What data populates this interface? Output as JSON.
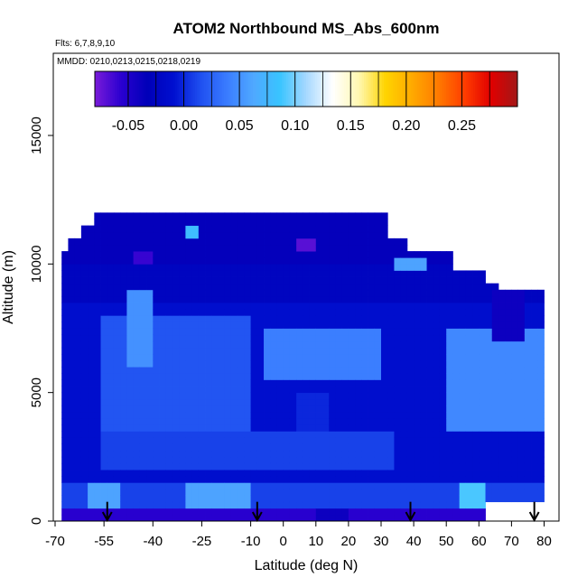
{
  "chart_data": {
    "type": "heatmap",
    "title": "ATOM2 Northbound MS_Abs_600nm",
    "flights_label": "Flts: 6,7,8,9,10",
    "dates_label": "MMDD: 0210,0213,0215,0218,0219",
    "xlabel": "Latitude (deg N)",
    "ylabel": "Altitude (m)",
    "xlim": [
      -70,
      85
    ],
    "ylim": [
      0,
      17500
    ],
    "x_ticks": [
      {
        "value": -70,
        "label": "-70"
      },
      {
        "value": -55,
        "label": "-55"
      },
      {
        "value": -40,
        "label": "-40"
      },
      {
        "value": -25,
        "label": "-25"
      },
      {
        "value": -10,
        "label": "-10"
      },
      {
        "value": 0,
        "label": "0"
      },
      {
        "value": 10,
        "label": "10"
      },
      {
        "value": 20,
        "label": "20"
      },
      {
        "value": 30,
        "label": "30"
      },
      {
        "value": 40,
        "label": "40"
      },
      {
        "value": 50,
        "label": "50"
      },
      {
        "value": 60,
        "label": "60"
      },
      {
        "value": 70,
        "label": "70"
      },
      {
        "value": 80,
        "label": "80"
      }
    ],
    "y_ticks": [
      {
        "value": 0,
        "label": "0"
      },
      {
        "value": 5000,
        "label": "5000"
      },
      {
        "value": 10000,
        "label": "10000"
      },
      {
        "value": 15000,
        "label": "15000"
      }
    ],
    "colorbar": {
      "range": [
        -0.08,
        0.3
      ],
      "colors": [
        "#7a1bd9",
        "#2a00d0",
        "#0000b8",
        "#0010d0",
        "#1f4ff0",
        "#3a7cff",
        "#4fa8ff",
        "#39c4ff",
        "#a6d8ff",
        "#ffffff",
        "#fff7b0",
        "#ffd400",
        "#ffaa00",
        "#ff7a00",
        "#ff3c00",
        "#e00000",
        "#a21818"
      ],
      "ticks": [
        {
          "value": -0.05,
          "label": "-0.05"
        },
        {
          "value": 0.0,
          "label": "0.00"
        },
        {
          "value": 0.05,
          "label": "0.05"
        },
        {
          "value": 0.1,
          "label": "0.10"
        },
        {
          "value": 0.15,
          "label": "0.15"
        },
        {
          "value": 0.2,
          "label": "0.20"
        },
        {
          "value": 0.25,
          "label": "0.25"
        }
      ]
    },
    "coverage": [
      {
        "lat_range": [
          -67,
          -65
        ],
        "alt_range": [
          0,
          10500
        ]
      },
      {
        "lat_range": [
          -65,
          -62
        ],
        "alt_range": [
          0,
          11000
        ]
      },
      {
        "lat_range": [
          -62,
          -58
        ],
        "alt_range": [
          0,
          11500
        ]
      },
      {
        "lat_range": [
          -58,
          33
        ],
        "alt_range": [
          0,
          12000
        ]
      },
      {
        "lat_range": [
          33,
          39
        ],
        "alt_range": [
          0,
          11000
        ]
      },
      {
        "lat_range": [
          39,
          53
        ],
        "alt_range": [
          0,
          10500
        ]
      },
      {
        "lat_range": [
          53,
          62
        ],
        "alt_range": [
          0,
          9800
        ]
      },
      {
        "lat_range": [
          62,
          67
        ],
        "alt_range": [
          800,
          9300
        ]
      },
      {
        "lat_range": [
          67,
          80
        ],
        "alt_range": [
          800,
          8900
        ]
      },
      {
        "lat_range": [
          80,
          81
        ],
        "alt_range": [
          800,
          7000
        ]
      }
    ],
    "patches": [
      {
        "lat": [
          -67,
          82
        ],
        "alt": [
          0,
          12500
        ],
        "value": -0.012
      },
      {
        "lat": [
          -67,
          82
        ],
        "alt": [
          10000,
          12500
        ],
        "value": -0.035
      },
      {
        "lat": [
          -67,
          82
        ],
        "alt": [
          8500,
          10000
        ],
        "value": -0.025
      },
      {
        "lat": [
          -55,
          -10
        ],
        "alt": [
          3500,
          8000
        ],
        "value": 0.018
      },
      {
        "lat": [
          -5,
          30
        ],
        "alt": [
          5500,
          7500
        ],
        "value": 0.04
      },
      {
        "lat": [
          -55,
          35
        ],
        "alt": [
          2000,
          3500
        ],
        "value": 0.01
      },
      {
        "lat": [
          50,
          81
        ],
        "alt": [
          3500,
          7500
        ],
        "value": 0.045
      },
      {
        "lat": [
          -48,
          -40
        ],
        "alt": [
          6000,
          9000
        ],
        "value": 0.05
      },
      {
        "lat": [
          -67,
          82
        ],
        "alt": [
          600,
          1500
        ],
        "value": 0.01
      },
      {
        "lat": [
          -60,
          -50
        ],
        "alt": [
          600,
          1400
        ],
        "value": 0.06
      },
      {
        "lat": [
          -30,
          -10
        ],
        "alt": [
          600,
          1400
        ],
        "value": 0.06
      },
      {
        "lat": [
          55,
          62
        ],
        "alt": [
          600,
          1400
        ],
        "value": 0.09
      },
      {
        "lat": [
          -67,
          62
        ],
        "alt": [
          0,
          600
        ],
        "value": -0.055
      },
      {
        "lat": [
          10,
          20
        ],
        "alt": [
          0,
          600
        ],
        "value": -0.04
      },
      {
        "lat": [
          35,
          45
        ],
        "alt": [
          9800,
          10300
        ],
        "value": 0.06
      },
      {
        "lat": [
          65,
          75
        ],
        "alt": [
          7000,
          9000
        ],
        "value": -0.04
      },
      {
        "lat": [
          -30,
          -25
        ],
        "alt": [
          11000,
          11500
        ],
        "value": 0.08
      },
      {
        "lat": [
          5,
          10
        ],
        "alt": [
          10500,
          11000
        ],
        "value": -0.07
      },
      {
        "lat": [
          -45,
          -40
        ],
        "alt": [
          10000,
          10500
        ],
        "value": -0.06
      },
      {
        "lat": [
          5,
          15
        ],
        "alt": [
          3500,
          5000
        ],
        "value": 0.0
      }
    ],
    "arrows": [
      {
        "lat": -54,
        "alt": 600
      },
      {
        "lat": -8,
        "alt": 600
      },
      {
        "lat": 39,
        "alt": 600
      },
      {
        "lat": 77,
        "alt": 600
      }
    ]
  }
}
